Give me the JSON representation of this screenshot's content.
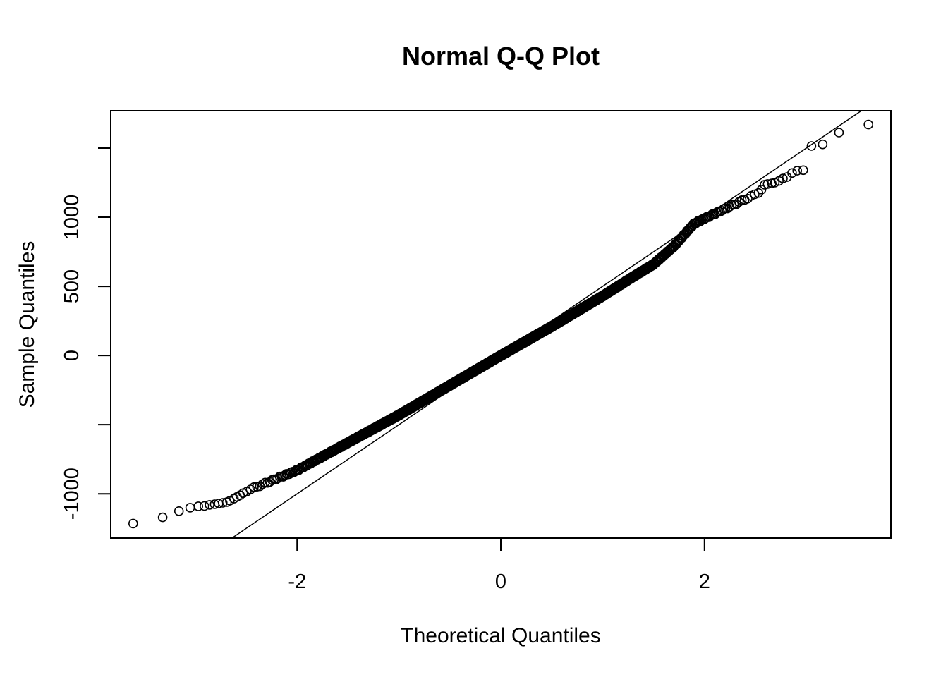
{
  "chart_data": {
    "type": "scatter",
    "title": "Normal Q-Q Plot",
    "xlabel": "Theoretical Quantiles",
    "ylabel": "Sample Quantiles",
    "xlim": [
      -3.83,
      3.83
    ],
    "ylim": [
      -1320,
      1770
    ],
    "x_ticks": [
      -2,
      0,
      2
    ],
    "x_tick_labels": [
      "-2",
      "0",
      "2"
    ],
    "y_ticks": [
      -1000,
      -500,
      0,
      500,
      1000,
      1500
    ],
    "y_tick_labels": [
      "-1000",
      "",
      "0",
      "500",
      "1000",
      ""
    ],
    "grid": false,
    "legend": "none",
    "reference_line": {
      "intercept": 0,
      "slope": 500
    },
    "point_style": "open-circle",
    "color": "#000000",
    "n_points": 1500,
    "outliers_low": [
      [
        -3.61,
        -1215
      ],
      [
        -3.32,
        -1170
      ],
      [
        -3.16,
        -1125
      ],
      [
        -3.05,
        -1100
      ],
      [
        -2.97,
        -1090
      ],
      [
        -2.91,
        -1088
      ],
      [
        -2.86,
        -1080
      ],
      [
        -2.81,
        -1075
      ],
      [
        -2.77,
        -1070
      ],
      [
        -2.73,
        -1065
      ],
      [
        -2.69,
        -1060
      ],
      [
        -2.66,
        -1050
      ],
      [
        -2.62,
        -1035
      ],
      [
        -2.59,
        -1022
      ],
      [
        -2.56,
        -1010
      ],
      [
        -2.53,
        -995
      ]
    ],
    "outliers_high": [
      [
        3.61,
        1670
      ],
      [
        3.32,
        1612
      ],
      [
        3.16,
        1527
      ],
      [
        3.05,
        1515
      ],
      [
        2.97,
        1340
      ],
      [
        2.91,
        1336
      ],
      [
        2.86,
        1320
      ],
      [
        2.81,
        1290
      ],
      [
        2.77,
        1280
      ],
      [
        2.73,
        1262
      ],
      [
        2.69,
        1250
      ],
      [
        2.66,
        1245
      ],
      [
        2.62,
        1240
      ],
      [
        2.59,
        1235
      ],
      [
        2.56,
        1200
      ],
      [
        2.53,
        1175
      ]
    ],
    "bulk_quantile_curve": [
      [
        -2.5,
        -980
      ],
      [
        -2.3,
        -920
      ],
      [
        -2.0,
        -830
      ],
      [
        -1.8,
        -750
      ],
      [
        -1.5,
        -630
      ],
      [
        -1.0,
        -430
      ],
      [
        -0.5,
        -215
      ],
      [
        0.0,
        0
      ],
      [
        0.5,
        210
      ],
      [
        1.0,
        430
      ],
      [
        1.3,
        570
      ],
      [
        1.5,
        660
      ],
      [
        1.7,
        790
      ],
      [
        1.9,
        955
      ],
      [
        2.2,
        1060
      ],
      [
        2.5,
        1165
      ]
    ]
  }
}
